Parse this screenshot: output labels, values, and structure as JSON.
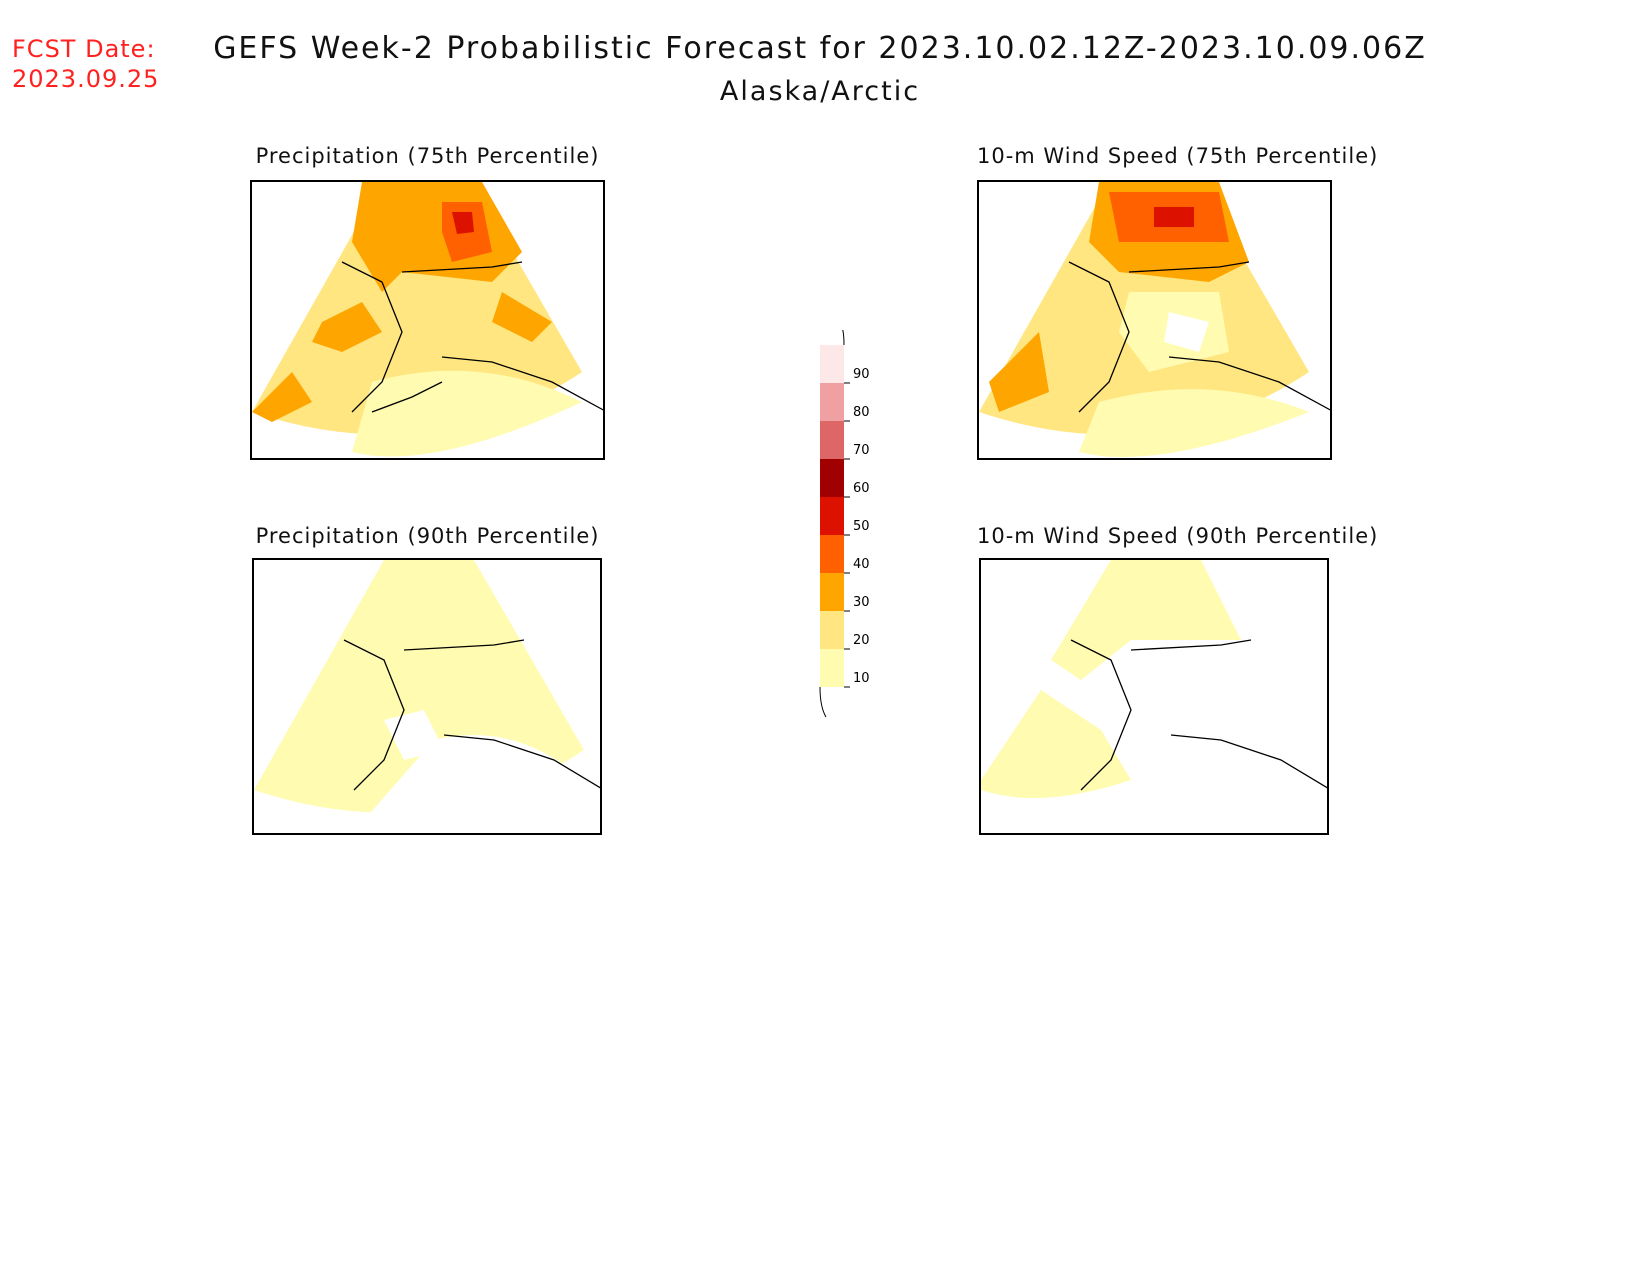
{
  "header": {
    "fcst_label": "FCST Date:",
    "fcst_date": "2023.09.25",
    "title": "GEFS Week-2 Probabilistic Forecast for 2023.10.02.12Z-2023.10.09.06Z",
    "subtitle": "Alaska/Arctic"
  },
  "panels": [
    {
      "title": "Precipitation (75th Percentile)"
    },
    {
      "title": "10-m Wind Speed (75th Percentile)"
    },
    {
      "title": "Precipitation (90th Percentile)"
    },
    {
      "title": "10-m Wind Speed (90th Percentile)"
    }
  ],
  "legend": {
    "levels": [
      "10",
      "20",
      "30",
      "40",
      "50",
      "60",
      "70",
      "80",
      "90"
    ],
    "colors": [
      "#fffbb0",
      "#ffe680",
      "#ffa500",
      "#ff6000",
      "#dd1100",
      "#a00000",
      "#dd6666",
      "#f0a0a0",
      "#fde8e8"
    ]
  }
}
